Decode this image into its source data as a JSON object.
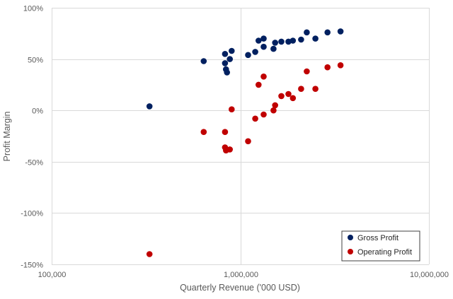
{
  "chart_data": {
    "type": "scatter",
    "title": "",
    "xlabel": "Quarterly Revenue ('000 USD)",
    "ylabel": "Profit Margin",
    "xscale": "log",
    "xlim": [
      100000,
      10000000
    ],
    "ylim": [
      -1.5,
      1.0
    ],
    "x_ticks": [
      {
        "value": 100000,
        "label": "100,000"
      },
      {
        "value": 1000000,
        "label": "1,000,000"
      },
      {
        "value": 10000000,
        "label": "10,000,000"
      }
    ],
    "y_ticks": [
      {
        "value": 1.0,
        "label": "100%"
      },
      {
        "value": 0.5,
        "label": "50%"
      },
      {
        "value": 0.0,
        "label": "0%"
      },
      {
        "value": -0.5,
        "label": "-50%"
      },
      {
        "value": -1.0,
        "label": "-100%"
      },
      {
        "value": -1.5,
        "label": "-150%"
      }
    ],
    "grid": true,
    "legend_position": "bottom-right",
    "series": [
      {
        "name": "Gross Profit",
        "color": "#002060",
        "points": [
          {
            "x": 330000,
            "y": 0.04
          },
          {
            "x": 640000,
            "y": 0.48
          },
          {
            "x": 830000,
            "y": 0.55
          },
          {
            "x": 830000,
            "y": 0.46
          },
          {
            "x": 840000,
            "y": 0.4
          },
          {
            "x": 850000,
            "y": 0.37
          },
          {
            "x": 880000,
            "y": 0.5
          },
          {
            "x": 900000,
            "y": 0.58
          },
          {
            "x": 1100000,
            "y": 0.54
          },
          {
            "x": 1200000,
            "y": 0.57
          },
          {
            "x": 1250000,
            "y": 0.68
          },
          {
            "x": 1330000,
            "y": 0.7
          },
          {
            "x": 1330000,
            "y": 0.62
          },
          {
            "x": 1500000,
            "y": 0.6
          },
          {
            "x": 1530000,
            "y": 0.66
          },
          {
            "x": 1650000,
            "y": 0.67
          },
          {
            "x": 1800000,
            "y": 0.67
          },
          {
            "x": 1900000,
            "y": 0.68
          },
          {
            "x": 2100000,
            "y": 0.69
          },
          {
            "x": 2250000,
            "y": 0.76
          },
          {
            "x": 2500000,
            "y": 0.7
          },
          {
            "x": 2900000,
            "y": 0.76
          },
          {
            "x": 3400000,
            "y": 0.77
          }
        ]
      },
      {
        "name": "Operating Profit",
        "color": "#C00000",
        "points": [
          {
            "x": 330000,
            "y": -1.4
          },
          {
            "x": 640000,
            "y": -0.21
          },
          {
            "x": 830000,
            "y": -0.21
          },
          {
            "x": 830000,
            "y": -0.36
          },
          {
            "x": 840000,
            "y": -0.39
          },
          {
            "x": 880000,
            "y": -0.38
          },
          {
            "x": 900000,
            "y": 0.01
          },
          {
            "x": 1100000,
            "y": -0.3
          },
          {
            "x": 1200000,
            "y": -0.08
          },
          {
            "x": 1250000,
            "y": 0.25
          },
          {
            "x": 1330000,
            "y": -0.04
          },
          {
            "x": 1330000,
            "y": 0.33
          },
          {
            "x": 1500000,
            "y": 0.0
          },
          {
            "x": 1530000,
            "y": 0.05
          },
          {
            "x": 1650000,
            "y": 0.14
          },
          {
            "x": 1800000,
            "y": 0.16
          },
          {
            "x": 1900000,
            "y": 0.12
          },
          {
            "x": 2100000,
            "y": 0.21
          },
          {
            "x": 2250000,
            "y": 0.38
          },
          {
            "x": 2500000,
            "y": 0.21
          },
          {
            "x": 2900000,
            "y": 0.42
          },
          {
            "x": 3400000,
            "y": 0.44
          }
        ]
      }
    ]
  }
}
